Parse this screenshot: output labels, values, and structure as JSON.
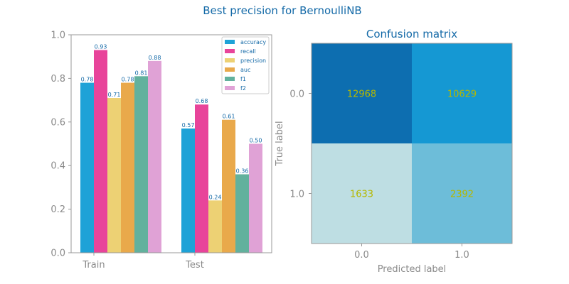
{
  "title": "Best precision for BernoulliNB",
  "chart_data": [
    {
      "type": "bar",
      "title": "",
      "xlabel": "",
      "ylabel": "",
      "categories": [
        "Train",
        "Test"
      ],
      "ylim": [
        0,
        1
      ],
      "yticks": [
        "0.0",
        "0.2",
        "0.4",
        "0.6",
        "0.8",
        "1.0"
      ],
      "legend": "top-right",
      "series": [
        {
          "name": "accuracy",
          "color": "#1ea2d7",
          "values": [
            0.78,
            0.57
          ],
          "labels": [
            "0.78",
            "0.57"
          ]
        },
        {
          "name": "recall",
          "color": "#e8449a",
          "values": [
            0.93,
            0.68
          ],
          "labels": [
            "0.93",
            "0.68"
          ]
        },
        {
          "name": "precision",
          "color": "#edd174",
          "values": [
            0.71,
            0.24
          ],
          "labels": [
            "0.71",
            "0.24"
          ]
        },
        {
          "name": "auc",
          "color": "#e9a94b",
          "values": [
            0.78,
            0.61
          ],
          "labels": [
            "0.78",
            "0.61"
          ]
        },
        {
          "name": "f1",
          "color": "#62b19d",
          "values": [
            0.81,
            0.36
          ],
          "labels": [
            "0.81",
            "0.36"
          ]
        },
        {
          "name": "f2",
          "color": "#e0a2d6",
          "values": [
            0.88,
            0.5
          ],
          "labels": [
            "0.88",
            "0.50"
          ]
        }
      ]
    },
    {
      "type": "heatmap",
      "title": "Confusion matrix",
      "xlabel": "Predicted label",
      "ylabel": "True label",
      "xticks": [
        "0.0",
        "1.0"
      ],
      "yticks": [
        "0.0",
        "1.0"
      ],
      "values": [
        [
          12968,
          10629
        ],
        [
          1633,
          2392
        ]
      ],
      "labels": [
        [
          "12968",
          "10629"
        ],
        [
          "1633",
          "2392"
        ]
      ],
      "colors": [
        [
          "#0d6eb0",
          "#1598d3"
        ],
        [
          "#bedee3",
          "#6dbdd9"
        ]
      ]
    }
  ]
}
